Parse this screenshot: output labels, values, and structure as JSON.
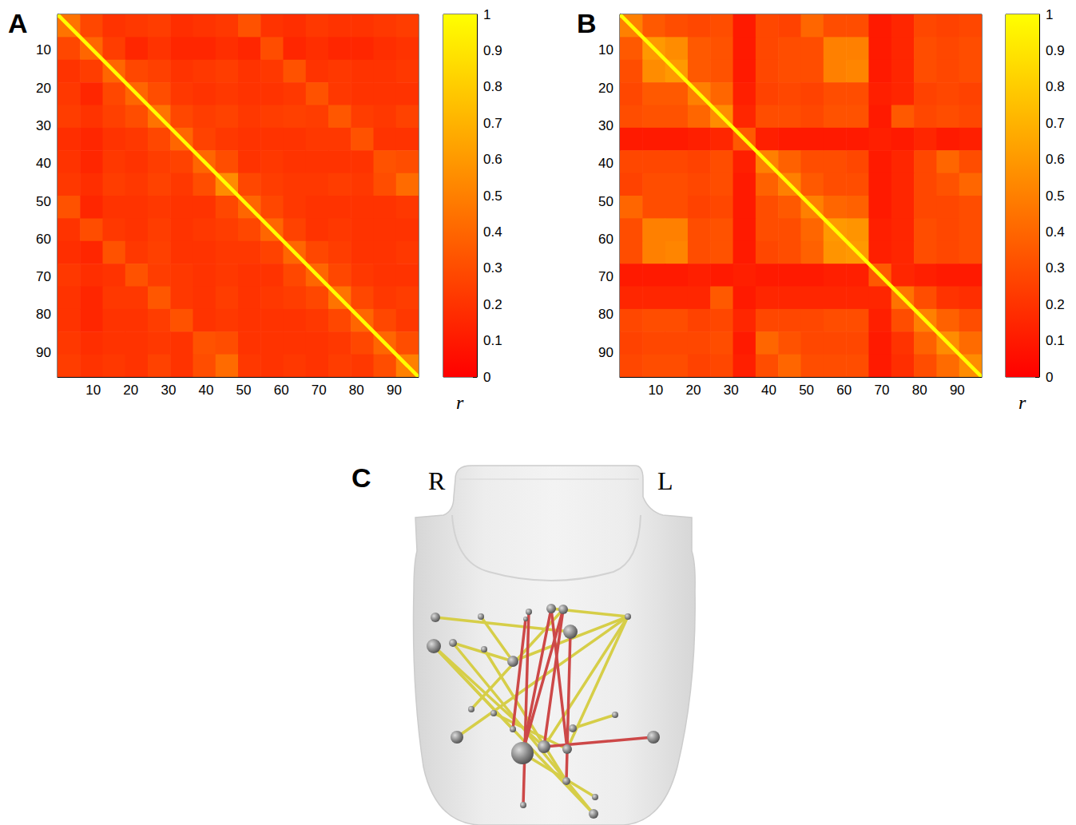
{
  "chart_data": [
    {
      "type": "heatmap",
      "letter": "A",
      "xlim": [
        0.5,
        96.5
      ],
      "ylim": [
        0.5,
        96.5
      ],
      "xticks": [
        10,
        20,
        30,
        40,
        50,
        60,
        70,
        80,
        90
      ],
      "yticks": [
        10,
        20,
        30,
        40,
        50,
        60,
        70,
        80,
        90
      ],
      "cell_bounds": [
        0.5,
        6.5,
        12.5,
        18.5,
        24.5,
        30.5,
        36.5,
        42.5,
        48.5,
        54.5,
        60.5,
        66.5,
        72.5,
        78.5,
        84.5,
        90.5,
        96.5
      ],
      "cells": [
        [
          0.45,
          0.28,
          0.2,
          0.22,
          0.24,
          0.18,
          0.2,
          0.22,
          0.32,
          0.2,
          0.18,
          0.22,
          0.2,
          0.2,
          0.22,
          0.24
        ],
        [
          0.28,
          0.4,
          0.24,
          0.15,
          0.2,
          0.15,
          0.15,
          0.18,
          0.15,
          0.3,
          0.15,
          0.18,
          0.15,
          0.15,
          0.18,
          0.2
        ],
        [
          0.2,
          0.24,
          0.4,
          0.28,
          0.25,
          0.2,
          0.22,
          0.24,
          0.2,
          0.22,
          0.32,
          0.2,
          0.22,
          0.2,
          0.2,
          0.22
        ],
        [
          0.22,
          0.15,
          0.28,
          0.4,
          0.3,
          0.22,
          0.2,
          0.22,
          0.2,
          0.2,
          0.22,
          0.32,
          0.22,
          0.2,
          0.2,
          0.2
        ],
        [
          0.24,
          0.2,
          0.25,
          0.3,
          0.45,
          0.28,
          0.24,
          0.26,
          0.22,
          0.24,
          0.25,
          0.24,
          0.34,
          0.24,
          0.22,
          0.26
        ],
        [
          0.18,
          0.15,
          0.2,
          0.22,
          0.28,
          0.4,
          0.26,
          0.22,
          0.2,
          0.2,
          0.2,
          0.22,
          0.22,
          0.32,
          0.2,
          0.2
        ],
        [
          0.2,
          0.15,
          0.22,
          0.2,
          0.24,
          0.26,
          0.4,
          0.3,
          0.2,
          0.22,
          0.2,
          0.2,
          0.2,
          0.2,
          0.32,
          0.3
        ],
        [
          0.22,
          0.18,
          0.24,
          0.22,
          0.26,
          0.22,
          0.3,
          0.55,
          0.28,
          0.24,
          0.22,
          0.22,
          0.24,
          0.22,
          0.3,
          0.42
        ],
        [
          0.32,
          0.15,
          0.2,
          0.2,
          0.22,
          0.2,
          0.2,
          0.28,
          0.4,
          0.28,
          0.22,
          0.2,
          0.2,
          0.2,
          0.2,
          0.22
        ],
        [
          0.2,
          0.3,
          0.22,
          0.2,
          0.24,
          0.2,
          0.22,
          0.24,
          0.28,
          0.4,
          0.26,
          0.2,
          0.22,
          0.2,
          0.2,
          0.2
        ],
        [
          0.18,
          0.15,
          0.32,
          0.22,
          0.25,
          0.2,
          0.2,
          0.22,
          0.22,
          0.26,
          0.4,
          0.28,
          0.24,
          0.2,
          0.2,
          0.22
        ],
        [
          0.22,
          0.18,
          0.2,
          0.32,
          0.24,
          0.22,
          0.2,
          0.22,
          0.2,
          0.2,
          0.28,
          0.4,
          0.28,
          0.22,
          0.2,
          0.2
        ],
        [
          0.2,
          0.15,
          0.22,
          0.22,
          0.34,
          0.22,
          0.2,
          0.24,
          0.2,
          0.22,
          0.24,
          0.28,
          0.45,
          0.28,
          0.22,
          0.24
        ],
        [
          0.2,
          0.15,
          0.2,
          0.2,
          0.24,
          0.32,
          0.2,
          0.22,
          0.2,
          0.2,
          0.2,
          0.22,
          0.28,
          0.4,
          0.28,
          0.22
        ],
        [
          0.22,
          0.18,
          0.2,
          0.2,
          0.22,
          0.2,
          0.32,
          0.3,
          0.2,
          0.2,
          0.2,
          0.2,
          0.22,
          0.28,
          0.4,
          0.3
        ],
        [
          0.24,
          0.2,
          0.22,
          0.2,
          0.26,
          0.2,
          0.3,
          0.42,
          0.22,
          0.2,
          0.22,
          0.2,
          0.24,
          0.22,
          0.3,
          0.5
        ]
      ],
      "diagonal": 1,
      "colorbar": {
        "range": [
          0,
          1
        ],
        "ticks": [
          0,
          0.1,
          0.2,
          0.3,
          0.4,
          0.5,
          0.6,
          0.7,
          0.8,
          0.9,
          1
        ],
        "label": "r",
        "colors": [
          "#ff0000",
          "#ffff00"
        ]
      }
    },
    {
      "type": "heatmap",
      "letter": "B",
      "xlim": [
        0.5,
        96.5
      ],
      "ylim": [
        0.5,
        96.5
      ],
      "xticks": [
        10,
        20,
        30,
        40,
        50,
        60,
        70,
        80,
        90
      ],
      "yticks": [
        10,
        20,
        30,
        40,
        50,
        60,
        70,
        80,
        90
      ],
      "cell_bounds": [
        0.5,
        6.5,
        12.5,
        18.5,
        24.5,
        30.5,
        36.5,
        42.5,
        48.5,
        54.5,
        60.5,
        66.5,
        72.5,
        78.5,
        84.5,
        90.5,
        96.5
      ],
      "cells": [
        [
          0.5,
          0.35,
          0.3,
          0.28,
          0.3,
          0.1,
          0.28,
          0.26,
          0.4,
          0.3,
          0.3,
          0.1,
          0.15,
          0.28,
          0.26,
          0.28
        ],
        [
          0.35,
          0.6,
          0.55,
          0.35,
          0.32,
          0.1,
          0.28,
          0.3,
          0.3,
          0.5,
          0.5,
          0.1,
          0.15,
          0.3,
          0.28,
          0.3
        ],
        [
          0.3,
          0.55,
          0.6,
          0.35,
          0.32,
          0.1,
          0.28,
          0.3,
          0.3,
          0.5,
          0.52,
          0.1,
          0.15,
          0.3,
          0.28,
          0.3
        ],
        [
          0.28,
          0.35,
          0.35,
          0.5,
          0.4,
          0.12,
          0.26,
          0.28,
          0.26,
          0.3,
          0.3,
          0.12,
          0.15,
          0.26,
          0.28,
          0.26
        ],
        [
          0.3,
          0.32,
          0.32,
          0.4,
          0.55,
          0.15,
          0.3,
          0.3,
          0.28,
          0.32,
          0.32,
          0.1,
          0.35,
          0.28,
          0.3,
          0.28
        ],
        [
          0.1,
          0.1,
          0.1,
          0.12,
          0.15,
          0.35,
          0.12,
          0.1,
          0.1,
          0.1,
          0.1,
          0.12,
          0.1,
          0.15,
          0.1,
          0.12
        ],
        [
          0.28,
          0.28,
          0.28,
          0.26,
          0.3,
          0.12,
          0.5,
          0.38,
          0.3,
          0.3,
          0.28,
          0.1,
          0.15,
          0.28,
          0.4,
          0.3
        ],
        [
          0.26,
          0.3,
          0.3,
          0.28,
          0.3,
          0.1,
          0.38,
          0.5,
          0.35,
          0.3,
          0.3,
          0.1,
          0.15,
          0.28,
          0.32,
          0.4
        ],
        [
          0.4,
          0.3,
          0.3,
          0.26,
          0.28,
          0.1,
          0.3,
          0.35,
          0.5,
          0.4,
          0.38,
          0.1,
          0.15,
          0.28,
          0.28,
          0.3
        ],
        [
          0.3,
          0.5,
          0.5,
          0.3,
          0.32,
          0.1,
          0.3,
          0.3,
          0.4,
          0.6,
          0.58,
          0.12,
          0.15,
          0.3,
          0.28,
          0.3
        ],
        [
          0.3,
          0.5,
          0.52,
          0.3,
          0.32,
          0.1,
          0.28,
          0.3,
          0.38,
          0.58,
          0.6,
          0.12,
          0.15,
          0.3,
          0.28,
          0.3
        ],
        [
          0.1,
          0.1,
          0.1,
          0.12,
          0.1,
          0.12,
          0.1,
          0.1,
          0.1,
          0.12,
          0.12,
          0.35,
          0.15,
          0.12,
          0.1,
          0.1
        ],
        [
          0.15,
          0.15,
          0.15,
          0.15,
          0.35,
          0.1,
          0.15,
          0.15,
          0.15,
          0.15,
          0.15,
          0.15,
          0.45,
          0.3,
          0.2,
          0.18
        ],
        [
          0.28,
          0.3,
          0.3,
          0.26,
          0.28,
          0.15,
          0.28,
          0.28,
          0.28,
          0.3,
          0.3,
          0.12,
          0.3,
          0.5,
          0.38,
          0.3
        ],
        [
          0.26,
          0.28,
          0.28,
          0.28,
          0.3,
          0.1,
          0.4,
          0.32,
          0.28,
          0.28,
          0.28,
          0.1,
          0.2,
          0.38,
          0.55,
          0.42
        ],
        [
          0.28,
          0.3,
          0.3,
          0.26,
          0.28,
          0.12,
          0.3,
          0.4,
          0.3,
          0.3,
          0.3,
          0.1,
          0.18,
          0.3,
          0.42,
          0.55
        ]
      ],
      "diagonal": 1,
      "colorbar": {
        "range": [
          0,
          1
        ],
        "ticks": [
          0,
          0.1,
          0.2,
          0.3,
          0.4,
          0.5,
          0.6,
          0.7,
          0.8,
          0.9,
          1
        ],
        "label": "r",
        "colors": [
          "#ff0000",
          "#ffff00"
        ]
      }
    },
    {
      "type": "network",
      "letter": "C",
      "side_labels": [
        "R",
        "L"
      ],
      "nodes": [
        {
          "size": 6
        },
        {
          "size": 4
        },
        {
          "size": 4
        },
        {
          "size": 6
        },
        {
          "size": 6
        },
        {
          "size": 4
        },
        {
          "size": 9
        },
        {
          "size": 5
        },
        {
          "size": 4
        },
        {
          "size": 7
        },
        {
          "size": 9
        },
        {
          "size": 3
        },
        {
          "size": 4
        },
        {
          "size": 4
        },
        {
          "size": 4
        },
        {
          "size": 8
        },
        {
          "size": 5
        },
        {
          "size": 4
        },
        {
          "size": 14
        },
        {
          "size": 8
        },
        {
          "size": 6
        },
        {
          "size": 8
        },
        {
          "size": 5
        },
        {
          "size": 4
        },
        {
          "size": 6
        },
        {
          "size": 4
        }
      ],
      "edges": [
        {
          "from": 0,
          "to": 10,
          "color": "#d6ce48"
        },
        {
          "from": 1,
          "to": 9,
          "color": "#d6ce48"
        },
        {
          "from": 3,
          "to": 5,
          "color": "#d6ce48"
        },
        {
          "from": 5,
          "to": 9,
          "color": "#d6ce48"
        },
        {
          "from": 5,
          "to": 15,
          "color": "#d6ce48"
        },
        {
          "from": 5,
          "to": 19,
          "color": "#d6ce48"
        },
        {
          "from": 5,
          "to": 20,
          "color": "#d6ce48"
        },
        {
          "from": 6,
          "to": 14,
          "color": "#d6ce48"
        },
        {
          "from": 6,
          "to": 19,
          "color": "#d6ce48"
        },
        {
          "from": 6,
          "to": 24,
          "color": "#d6ce48"
        },
        {
          "from": 7,
          "to": 9,
          "color": "#d6ce48"
        },
        {
          "from": 7,
          "to": 24,
          "color": "#d6ce48"
        },
        {
          "from": 8,
          "to": 22,
          "color": "#d6ce48"
        },
        {
          "from": 12,
          "to": 4,
          "color": "#d6ce48"
        },
        {
          "from": 16,
          "to": 17,
          "color": "#d6ce48"
        },
        {
          "from": 18,
          "to": 23,
          "color": "#d6ce48"
        },
        {
          "from": 13,
          "to": 20,
          "color": "#d6ce48"
        },
        {
          "from": 2,
          "to": 25,
          "color": "#cd4848"
        },
        {
          "from": 3,
          "to": 18,
          "color": "#cd4848"
        },
        {
          "from": 4,
          "to": 18,
          "color": "#cd4848"
        },
        {
          "from": 11,
          "to": 14,
          "color": "#cd4848"
        },
        {
          "from": 4,
          "to": 19,
          "color": "#cd4848"
        },
        {
          "from": 10,
          "to": 22,
          "color": "#cd4848"
        },
        {
          "from": 21,
          "to": 19,
          "color": "#cd4848"
        },
        {
          "from": 3,
          "to": 20,
          "color": "#cd4848"
        }
      ]
    }
  ]
}
